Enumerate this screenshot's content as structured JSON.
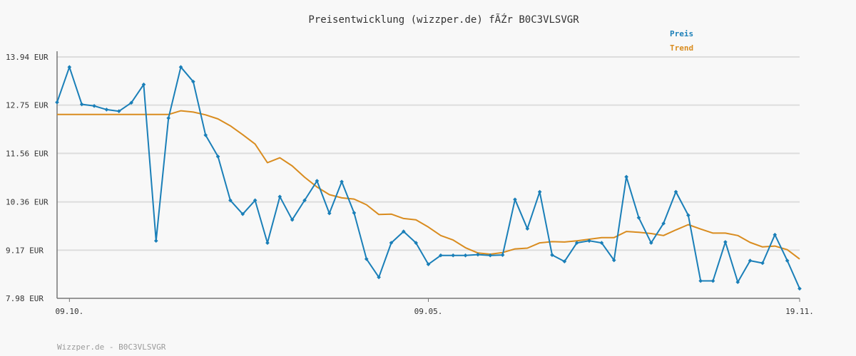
{
  "chart_data": {
    "type": "line",
    "title": "Preisentwicklung (wizzper.de) fÃŹr B0C3VLSVGR",
    "footer": "Wizzper.de - B0C3VLSVGR",
    "ylim": [
      7.98,
      13.94
    ],
    "y_ticks": [
      "13.94 EUR",
      "12.75 EUR",
      "11.56 EUR",
      "10.36 EUR",
      "9.17 EUR",
      "7.98 EUR"
    ],
    "y_tick_values": [
      13.94,
      12.75,
      11.56,
      10.36,
      9.17,
      7.98
    ],
    "x_tick_labels": [
      "09.10.",
      "09.05.",
      "19.11."
    ],
    "x_tick_index": [
      1,
      30,
      60
    ],
    "grid": true,
    "legend_position": "top-right",
    "colors": {
      "preis": "#1a7fb8",
      "trend": "#d98c1f",
      "axis": "#777777",
      "grid": "#dddddd"
    },
    "series": [
      {
        "name": "Preis",
        "values": [
          12.82,
          13.69,
          12.77,
          12.73,
          12.64,
          12.6,
          12.81,
          13.26,
          9.4,
          12.43,
          13.69,
          13.33,
          12.01,
          11.48,
          10.4,
          10.06,
          10.4,
          9.35,
          10.49,
          9.92,
          10.4,
          10.88,
          10.08,
          10.86,
          10.09,
          8.95,
          8.5,
          9.35,
          9.63,
          9.35,
          8.82,
          9.04,
          9.04,
          9.04,
          9.06,
          9.04,
          9.05,
          10.42,
          9.7,
          10.61,
          9.05,
          8.89,
          9.35,
          9.4,
          9.35,
          8.92,
          10.98,
          9.97,
          9.35,
          9.83,
          10.61,
          10.03,
          8.41,
          8.41,
          9.37,
          8.38,
          8.91,
          8.85,
          9.55,
          8.91,
          8.22
        ],
        "color": "#1a7fb8"
      },
      {
        "name": "Trend",
        "values": [
          12.52,
          12.52,
          12.52,
          12.52,
          12.52,
          12.52,
          12.52,
          12.52,
          12.52,
          12.52,
          12.61,
          12.58,
          12.51,
          12.41,
          12.24,
          12.02,
          11.79,
          11.33,
          11.45,
          11.25,
          10.97,
          10.73,
          10.54,
          10.46,
          10.43,
          10.29,
          10.05,
          10.06,
          9.95,
          9.92,
          9.74,
          9.53,
          9.42,
          9.23,
          9.1,
          9.07,
          9.11,
          9.2,
          9.22,
          9.35,
          9.38,
          9.37,
          9.4,
          9.44,
          9.48,
          9.48,
          9.63,
          9.61,
          9.58,
          9.53,
          9.67,
          9.8,
          9.69,
          9.59,
          9.59,
          9.53,
          9.36,
          9.25,
          9.27,
          9.18,
          8.95
        ],
        "color": "#d98c1f"
      }
    ]
  }
}
